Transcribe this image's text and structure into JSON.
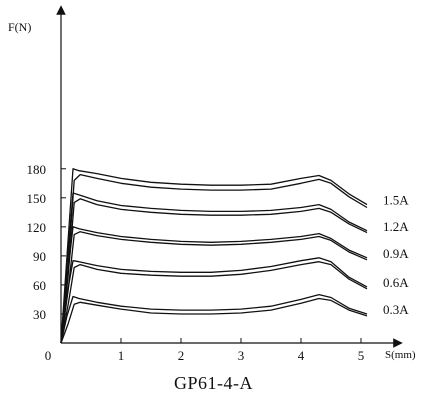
{
  "chart_data": {
    "type": "line",
    "title": "GP61-4-A",
    "xlabel": "S(mm)",
    "ylabel": "F(N)",
    "xlim": [
      0,
      5.2
    ],
    "ylim": [
      0,
      195
    ],
    "origin_label": "0",
    "x_ticks": [
      1,
      2,
      3,
      4,
      5
    ],
    "y_ticks": [
      30,
      60,
      90,
      120,
      150,
      180
    ],
    "grid": false,
    "legend": "right-side inline labels",
    "colors": {
      "line": "#111111",
      "background": "#ffffff"
    },
    "series": [
      {
        "name": "0.3A",
        "upper": {
          "x": [
            0,
            0.1,
            0.2,
            0.3,
            0.6,
            1.0,
            1.5,
            2.0,
            2.5,
            3.0,
            3.5,
            4.0,
            4.3,
            4.5,
            4.8,
            5.1
          ],
          "y": [
            0,
            28,
            48,
            46,
            42,
            38,
            35,
            34,
            34,
            35,
            38,
            45,
            50,
            47,
            36,
            30
          ]
        },
        "lower": {
          "x": [
            0,
            0.12,
            0.22,
            0.32,
            0.6,
            1.0,
            1.5,
            2.0,
            2.5,
            3.0,
            3.5,
            4.0,
            4.3,
            4.5,
            4.8,
            5.1
          ],
          "y": [
            0,
            20,
            40,
            42,
            39,
            35,
            31,
            30,
            30,
            31,
            34,
            41,
            46,
            44,
            34,
            28
          ]
        }
      },
      {
        "name": "0.6A",
        "upper": {
          "x": [
            0,
            0.1,
            0.2,
            0.3,
            0.6,
            1.0,
            1.5,
            2.0,
            2.5,
            3.0,
            3.5,
            4.0,
            4.3,
            4.5,
            4.8,
            5.1
          ],
          "y": [
            0,
            50,
            85,
            84,
            80,
            76,
            74,
            73,
            73,
            75,
            79,
            85,
            88,
            84,
            68,
            58
          ]
        },
        "lower": {
          "x": [
            0,
            0.12,
            0.22,
            0.32,
            0.6,
            1.0,
            1.5,
            2.0,
            2.5,
            3.0,
            3.5,
            4.0,
            4.3,
            4.5,
            4.8,
            5.1
          ],
          "y": [
            0,
            40,
            78,
            81,
            76,
            72,
            70,
            69,
            69,
            71,
            75,
            81,
            84,
            81,
            66,
            56
          ]
        }
      },
      {
        "name": "0.9A",
        "upper": {
          "x": [
            0,
            0.1,
            0.2,
            0.3,
            0.6,
            1.0,
            1.5,
            2.0,
            2.5,
            3.0,
            3.5,
            4.0,
            4.3,
            4.5,
            4.8,
            5.1
          ],
          "y": [
            0,
            65,
            120,
            118,
            114,
            110,
            107,
            105,
            104,
            105,
            107,
            110,
            113,
            108,
            96,
            88
          ]
        },
        "lower": {
          "x": [
            0,
            0.12,
            0.22,
            0.32,
            0.6,
            1.0,
            1.5,
            2.0,
            2.5,
            3.0,
            3.5,
            4.0,
            4.3,
            4.5,
            4.8,
            5.1
          ],
          "y": [
            0,
            55,
            112,
            115,
            111,
            107,
            104,
            102,
            101,
            102,
            104,
            107,
            110,
            106,
            94,
            86
          ]
        }
      },
      {
        "name": "1.2A",
        "upper": {
          "x": [
            0,
            0.1,
            0.2,
            0.3,
            0.6,
            1.0,
            1.5,
            2.0,
            2.5,
            3.0,
            3.5,
            4.0,
            4.3,
            4.5,
            4.8,
            5.1
          ],
          "y": [
            0,
            80,
            155,
            153,
            147,
            142,
            139,
            137,
            136,
            136,
            137,
            140,
            143,
            138,
            125,
            116
          ]
        },
        "lower": {
          "x": [
            0,
            0.12,
            0.22,
            0.32,
            0.6,
            1.0,
            1.5,
            2.0,
            2.5,
            3.0,
            3.5,
            4.0,
            4.3,
            4.5,
            4.8,
            5.1
          ],
          "y": [
            0,
            70,
            145,
            149,
            143,
            138,
            135,
            133,
            132,
            132,
            133,
            136,
            139,
            135,
            123,
            114
          ]
        }
      },
      {
        "name": "1.5A",
        "upper": {
          "x": [
            0,
            0.1,
            0.2,
            0.3,
            0.6,
            1.0,
            1.5,
            2.0,
            2.5,
            3.0,
            3.5,
            4.0,
            4.3,
            4.5,
            4.8,
            5.1
          ],
          "y": [
            0,
            90,
            180,
            178,
            175,
            170,
            166,
            164,
            163,
            163,
            164,
            170,
            173,
            168,
            154,
            143
          ]
        },
        "lower": {
          "x": [
            0,
            0.12,
            0.22,
            0.32,
            0.6,
            1.0,
            1.5,
            2.0,
            2.5,
            3.0,
            3.5,
            4.0,
            4.3,
            4.5,
            4.8,
            5.1
          ],
          "y": [
            0,
            80,
            168,
            174,
            170,
            165,
            161,
            159,
            158,
            158,
            159,
            165,
            169,
            165,
            151,
            140
          ]
        }
      }
    ]
  }
}
